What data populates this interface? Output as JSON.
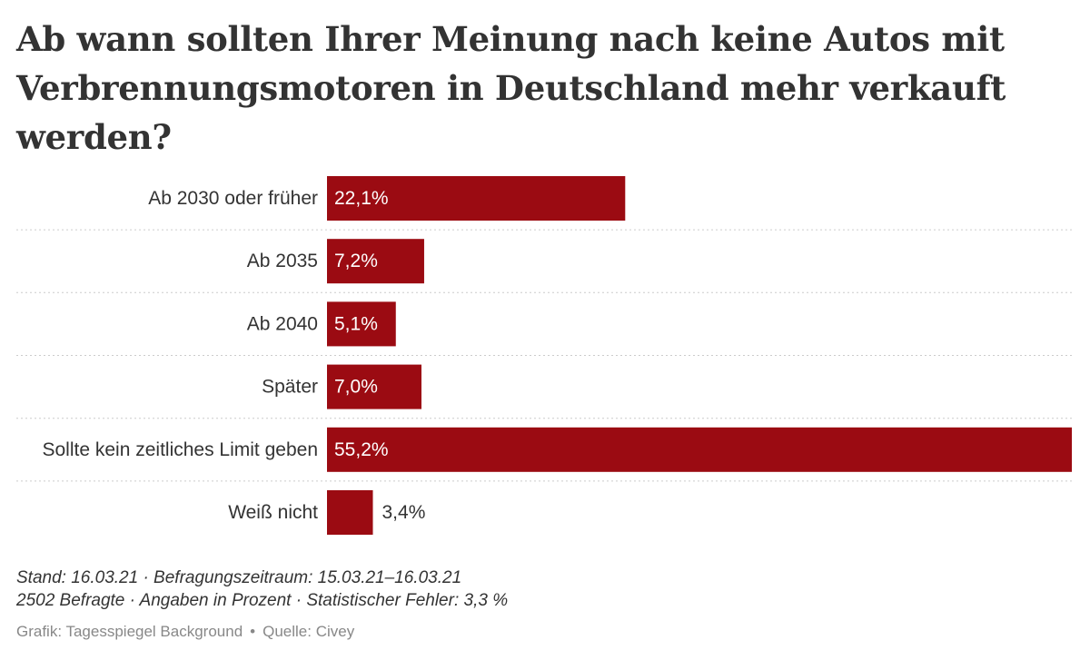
{
  "title": "Ab wann sollten Ihrer Meinung nach keine Autos mit Verbrennungsmotoren in Deutschland mehr verkauft werden?",
  "chart_data": {
    "type": "bar",
    "orientation": "horizontal",
    "categories": [
      "Ab 2030 oder früher",
      "Ab 2035",
      "Ab 2040",
      "Später",
      "Sollte kein zeitliches Limit geben",
      "Weiß nicht"
    ],
    "values": [
      22.1,
      7.2,
      5.1,
      7.0,
      55.2,
      3.4
    ],
    "value_labels": [
      "22,1%",
      "7,2%",
      "5,1%",
      "7,0%",
      "55,2%",
      "3,4%"
    ],
    "unit": "%",
    "xlim": [
      0,
      55.2
    ],
    "grid": "dotted row separators",
    "bar_color": "#9b0b12"
  },
  "notes": {
    "line1": "Stand: 16.03.21 · Befragungszeitraum: 15.03.21–16.03.21",
    "line2": "2502 Befragte · Angaben in Prozent · Statistischer Fehler: 3,3 %"
  },
  "credit": {
    "graphic": "Grafik: Tagesspiegel Background",
    "separator": "•",
    "source": "Quelle: Civey"
  },
  "colors": {
    "bar": "#9b0b12",
    "text": "#333333",
    "muted": "#888888",
    "grid": "#cccccc"
  }
}
